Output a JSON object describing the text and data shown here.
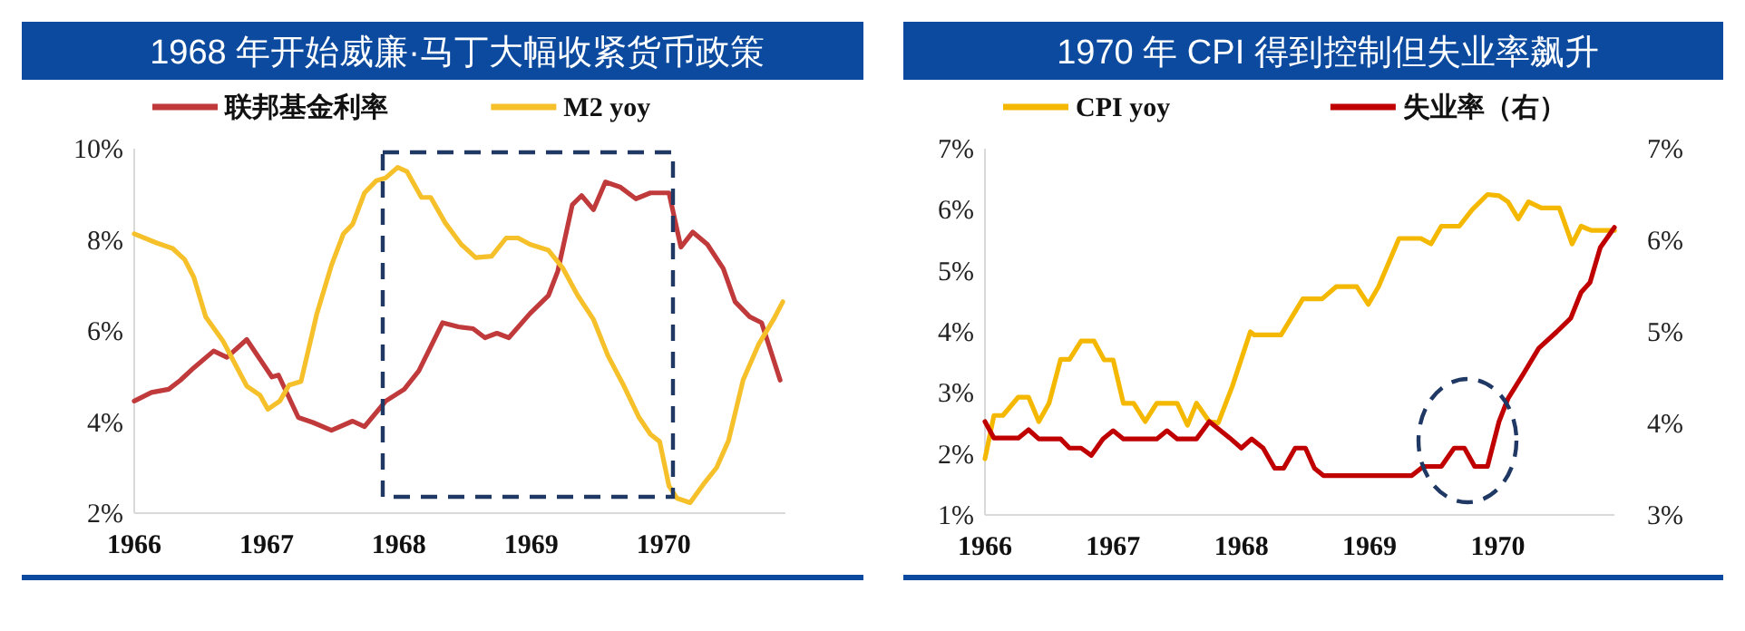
{
  "chart_data": [
    {
      "type": "line",
      "title": "1968 年开始威廉·马丁大幅收紧货币政策",
      "xlim": [
        1966,
        1970.92
      ],
      "xticks": [
        1966,
        1967,
        1968,
        1969,
        1970
      ],
      "ylim": [
        2,
        10
      ],
      "yticks": [
        {
          "value": 2,
          "label": "2%"
        },
        {
          "value": 4,
          "label": "4%"
        },
        {
          "value": 6,
          "label": "6%"
        },
        {
          "value": 8,
          "label": "8%"
        },
        {
          "value": 10,
          "label": "10%"
        }
      ],
      "legend": "top",
      "grid": false,
      "series": [
        {
          "name": "联邦基金利率",
          "color": "#c0393b",
          "x": [
            1966.0,
            1966.13,
            1966.26,
            1966.35,
            1966.45,
            1966.6,
            1966.7,
            1966.85,
            1967.04,
            1967.09,
            1967.24,
            1967.35,
            1967.49,
            1967.65,
            1967.74,
            1967.9,
            1968.04,
            1968.15,
            1968.33,
            1968.45,
            1968.56,
            1968.65,
            1968.74,
            1968.83,
            1968.99,
            1969.13,
            1969.2,
            1969.31,
            1969.38,
            1969.47,
            1969.56,
            1969.67,
            1969.79,
            1969.9,
            1970.04,
            1970.13,
            1970.22,
            1970.33,
            1970.45,
            1970.54,
            1970.65,
            1970.74,
            1970.88
          ],
          "values": [
            4.46,
            4.65,
            4.72,
            4.92,
            5.19,
            5.56,
            5.42,
            5.81,
            4.99,
            5.03,
            4.1,
            3.99,
            3.82,
            4.02,
            3.9,
            4.46,
            4.72,
            5.12,
            6.18,
            6.09,
            6.05,
            5.85,
            5.95,
            5.85,
            6.38,
            6.78,
            7.31,
            8.77,
            8.97,
            8.66,
            9.27,
            9.16,
            8.9,
            9.03,
            9.03,
            7.84,
            8.17,
            7.9,
            7.37,
            6.64,
            6.31,
            6.18,
            4.92
          ]
        },
        {
          "name": "M2 yoy",
          "color": "#f5c02a",
          "x": [
            1966.0,
            1966.17,
            1966.29,
            1966.38,
            1966.45,
            1966.54,
            1966.67,
            1966.79,
            1966.85,
            1966.95,
            1967.01,
            1967.1,
            1967.17,
            1967.26,
            1967.38,
            1967.49,
            1967.58,
            1967.65,
            1967.74,
            1967.83,
            1967.9,
            1967.99,
            1968.06,
            1968.17,
            1968.24,
            1968.35,
            1968.47,
            1968.58,
            1968.7,
            1968.81,
            1968.9,
            1968.99,
            1969.13,
            1969.24,
            1969.35,
            1969.47,
            1969.58,
            1969.7,
            1969.81,
            1969.9,
            1969.97,
            1970.04,
            1970.1,
            1970.2,
            1970.31,
            1970.4,
            1970.49,
            1970.6,
            1970.72,
            1970.83,
            1970.9
          ],
          "values": [
            8.13,
            7.93,
            7.81,
            7.57,
            7.18,
            6.31,
            5.78,
            5.12,
            4.79,
            4.59,
            4.28,
            4.46,
            4.81,
            4.89,
            6.38,
            7.44,
            8.13,
            8.34,
            9.03,
            9.3,
            9.36,
            9.59,
            9.5,
            8.93,
            8.93,
            8.37,
            7.9,
            7.61,
            7.64,
            8.04,
            8.04,
            7.9,
            7.77,
            7.37,
            6.78,
            6.25,
            5.45,
            4.79,
            4.12,
            3.73,
            3.57,
            2.6,
            2.33,
            2.23,
            2.67,
            3.0,
            3.59,
            4.92,
            5.72,
            6.25,
            6.64
          ]
        }
      ]
    },
    {
      "type": "line",
      "title": "1970 年 CPI 得到控制但失业率飙升",
      "xlim": [
        1966,
        1970.91
      ],
      "xticks": [
        1966,
        1967,
        1968,
        1969,
        1970
      ],
      "ylim": [
        1,
        7
      ],
      "yticks": [
        {
          "value": 1,
          "label": "1%"
        },
        {
          "value": 2,
          "label": "2%"
        },
        {
          "value": 3,
          "label": "3%"
        },
        {
          "value": 4,
          "label": "4%"
        },
        {
          "value": 5,
          "label": "5%"
        },
        {
          "value": 6,
          "label": "6%"
        },
        {
          "value": 7,
          "label": "7%"
        }
      ],
      "y2lim": [
        3,
        7
      ],
      "y2ticks": [
        {
          "value": 3,
          "label": "3%"
        },
        {
          "value": 4,
          "label": "4%"
        },
        {
          "value": 5,
          "label": "5%"
        },
        {
          "value": 6,
          "label": "6%"
        },
        {
          "value": 7,
          "label": "7%"
        }
      ],
      "legend": "top",
      "grid": false,
      "series": [
        {
          "name": "CPI yoy",
          "color": "#f5b800",
          "x": [
            1966.0,
            1966.07,
            1966.14,
            1966.26,
            1966.34,
            1966.42,
            1966.5,
            1966.59,
            1966.66,
            1966.75,
            1966.85,
            1966.93,
            1967.0,
            1967.08,
            1967.16,
            1967.25,
            1967.34,
            1967.5,
            1967.58,
            1967.65,
            1967.75,
            1967.82,
            1967.93,
            1968.07,
            1968.1,
            1968.31,
            1968.48,
            1968.63,
            1968.74,
            1968.9,
            1968.99,
            1969.07,
            1969.23,
            1969.4,
            1969.48,
            1969.56,
            1969.7,
            1969.8,
            1969.92,
            1970.01,
            1970.08,
            1970.16,
            1970.24,
            1970.34,
            1970.48,
            1970.58,
            1970.65,
            1970.73,
            1970.91
          ],
          "values": [
            1.92,
            2.63,
            2.63,
            2.93,
            2.93,
            2.53,
            2.83,
            3.55,
            3.55,
            3.85,
            3.85,
            3.54,
            3.54,
            2.83,
            2.83,
            2.53,
            2.83,
            2.83,
            2.47,
            2.83,
            2.53,
            2.51,
            3.11,
            4.0,
            3.95,
            3.95,
            4.54,
            4.54,
            4.74,
            4.74,
            4.45,
            4.74,
            5.53,
            5.53,
            5.44,
            5.73,
            5.73,
            6.0,
            6.25,
            6.23,
            6.13,
            5.85,
            6.13,
            6.03,
            6.03,
            5.44,
            5.73,
            5.66,
            5.66
          ]
        },
        {
          "name": "失业率（右）",
          "color": "#c00000",
          "axis": "y2",
          "x": [
            1966.0,
            1966.07,
            1966.26,
            1966.34,
            1966.42,
            1966.59,
            1966.66,
            1966.75,
            1966.83,
            1966.92,
            1967.0,
            1967.08,
            1967.34,
            1967.42,
            1967.5,
            1967.65,
            1967.75,
            1967.91,
            1968.0,
            1968.08,
            1968.17,
            1968.26,
            1968.33,
            1968.42,
            1968.5,
            1968.57,
            1968.64,
            1969.33,
            1969.42,
            1969.56,
            1969.66,
            1969.74,
            1969.82,
            1969.92,
            1970.01,
            1970.08,
            1970.2,
            1970.32,
            1970.46,
            1970.57,
            1970.65,
            1970.72,
            1970.8,
            1970.91
          ],
          "values": [
            4.02,
            3.84,
            3.84,
            3.93,
            3.83,
            3.83,
            3.73,
            3.73,
            3.65,
            3.83,
            3.92,
            3.83,
            3.83,
            3.92,
            3.83,
            3.83,
            4.02,
            3.84,
            3.73,
            3.83,
            3.73,
            3.51,
            3.51,
            3.73,
            3.73,
            3.51,
            3.43,
            3.43,
            3.53,
            3.53,
            3.73,
            3.73,
            3.53,
            3.53,
            4.02,
            4.27,
            4.54,
            4.82,
            5.0,
            5.15,
            5.43,
            5.54,
            5.92,
            6.14
          ]
        }
      ]
    }
  ]
}
